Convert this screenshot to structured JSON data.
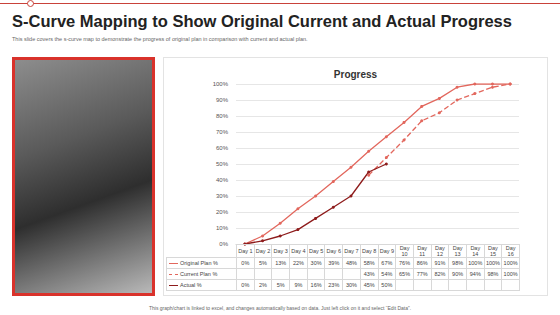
{
  "header": {
    "title": "S-Curve Mapping to Show Original Current and Actual Progress",
    "subtitle": "This slide covers the s-curve map to demonstrate the progress of original plan in comparison with current and actual plan."
  },
  "footer": "This graph/chart is linked to excel, and changes automatically based on data. Just left click on it and select “Edit Data”.",
  "chart_data": {
    "type": "line",
    "title": "Progress",
    "categories": [
      "Day 1",
      "Day 2",
      "Day 3",
      "Day 4",
      "Day 5",
      "Day 6",
      "Day 7",
      "Day 8",
      "Day 9",
      "Day 10",
      "Day 11",
      "Day 12",
      "Day 13",
      "Day 14",
      "Day 15",
      "Day 16"
    ],
    "series": [
      {
        "name": "Original Plan %",
        "color": "#e2675d",
        "marker": "circle",
        "line_style": "solid",
        "values": [
          0,
          5,
          13,
          22,
          30,
          39,
          48,
          58,
          67,
          76,
          86,
          91,
          98,
          100,
          100,
          100
        ],
        "value_labels": [
          "0%",
          "5%",
          "13%",
          "22%",
          "30%",
          "39%",
          "48%",
          "58%",
          "67%",
          "76%",
          "86%",
          "91%",
          "98%",
          "100%",
          "100%",
          "100%"
        ]
      },
      {
        "name": "Current Plan %",
        "color": "#e2675d",
        "marker": "circle",
        "line_style": "dashed",
        "values": [
          null,
          null,
          null,
          null,
          null,
          null,
          null,
          43,
          54,
          65,
          77,
          82,
          90,
          94,
          98,
          100
        ],
        "value_labels": [
          null,
          null,
          null,
          null,
          null,
          null,
          null,
          "43%",
          "54%",
          "65%",
          "77%",
          "82%",
          "90%",
          "94%",
          "98%",
          "100%"
        ]
      },
      {
        "name": "Actual %",
        "color": "#8e1c1c",
        "marker": "circle",
        "line_style": "solid",
        "values": [
          0,
          2,
          5,
          9,
          16,
          23,
          30,
          45,
          50,
          null,
          null,
          null,
          null,
          null,
          null,
          null
        ],
        "value_labels": [
          "0%",
          "2%",
          "5%",
          "9%",
          "16%",
          "23%",
          "30%",
          "45%",
          "50%",
          null,
          null,
          null,
          null,
          null,
          null,
          null
        ]
      }
    ],
    "ylim": [
      0,
      100
    ],
    "yticks": [
      {
        "value": 0,
        "label": "0%"
      },
      {
        "value": 10,
        "label": "10%"
      },
      {
        "value": 20,
        "label": "20%"
      },
      {
        "value": 30,
        "label": "30%"
      },
      {
        "value": 40,
        "label": "40%"
      },
      {
        "value": 50,
        "label": "50%"
      },
      {
        "value": 60,
        "label": "60%"
      },
      {
        "value": 70,
        "label": "70%"
      },
      {
        "value": 80,
        "label": "80%"
      },
      {
        "value": 90,
        "label": "90%"
      },
      {
        "value": 100,
        "label": "100%"
      }
    ],
    "grid": true
  }
}
